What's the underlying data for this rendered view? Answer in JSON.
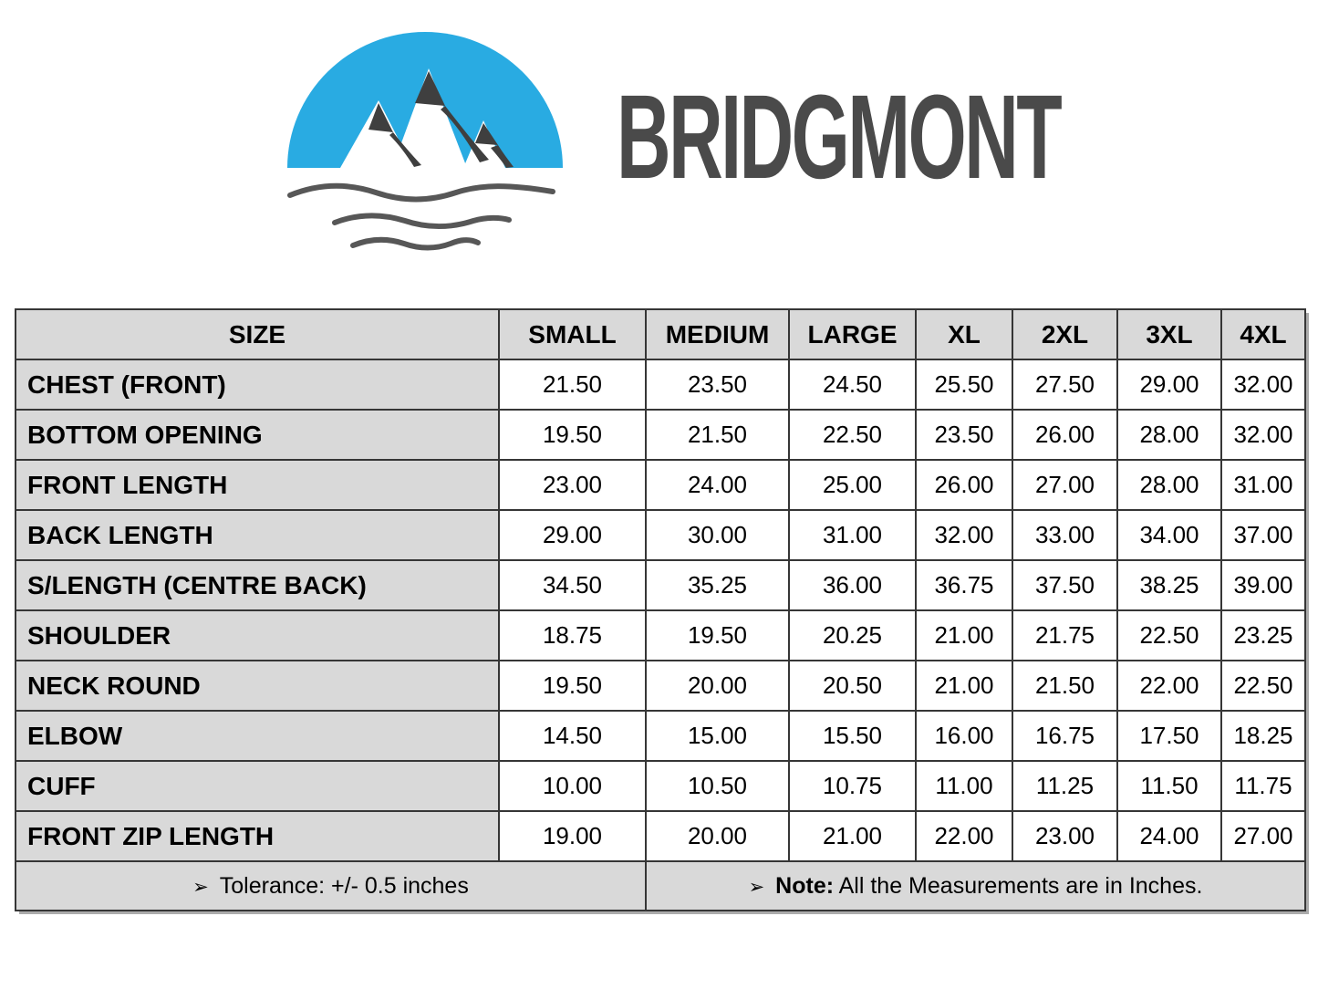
{
  "brand": {
    "name": "BRIDGMONT",
    "logo_blue": "#29abe2",
    "logo_dark": "#4a4a4a",
    "wave_gray": "#575757",
    "text_gray": "#4a4a4a"
  },
  "size_chart": {
    "columns": [
      "SIZE",
      "SMALL",
      "MEDIUM",
      "LARGE",
      "XL",
      "2XL",
      "3XL",
      "4XL"
    ],
    "rows": [
      {
        "label": "CHEST (FRONT)",
        "values": [
          "21.50",
          "23.50",
          "24.50",
          "25.50",
          "27.50",
          "29.00",
          "32.00"
        ]
      },
      {
        "label": "BOTTOM OPENING",
        "values": [
          "19.50",
          "21.50",
          "22.50",
          "23.50",
          "26.00",
          "28.00",
          "32.00"
        ]
      },
      {
        "label": "FRONT LENGTH",
        "values": [
          "23.00",
          "24.00",
          "25.00",
          "26.00",
          "27.00",
          "28.00",
          "31.00"
        ]
      },
      {
        "label": "BACK LENGTH",
        "values": [
          "29.00",
          "30.00",
          "31.00",
          "32.00",
          "33.00",
          "34.00",
          "37.00"
        ]
      },
      {
        "label": "S/LENGTH (CENTRE BACK)",
        "values": [
          "34.50",
          "35.25",
          "36.00",
          "36.75",
          "37.50",
          "38.25",
          "39.00"
        ]
      },
      {
        "label": "SHOULDER",
        "values": [
          "18.75",
          "19.50",
          "20.25",
          "21.00",
          "21.75",
          "22.50",
          "23.25"
        ]
      },
      {
        "label": "NECK ROUND",
        "values": [
          "19.50",
          "20.00",
          "20.50",
          "21.00",
          "21.50",
          "22.00",
          "22.50"
        ]
      },
      {
        "label": "ELBOW",
        "values": [
          "14.50",
          "15.00",
          "15.50",
          "16.00",
          "16.75",
          "17.50",
          "18.25"
        ]
      },
      {
        "label": "CUFF",
        "values": [
          "10.00",
          "10.50",
          "10.75",
          "11.00",
          "11.25",
          "11.50",
          "11.75"
        ]
      },
      {
        "label": "FRONT ZIP LENGTH",
        "values": [
          "19.00",
          "20.00",
          "21.00",
          "22.00",
          "23.00",
          "24.00",
          "27.00"
        ]
      }
    ],
    "footer": {
      "bullet": "➢",
      "tolerance_text": "Tolerance:  +/- 0.5 inches",
      "note_label": "Note:",
      "note_text": " All the Measurements are in Inches."
    },
    "cell_gray": "#d9d9d9",
    "border_color": "#363636"
  }
}
